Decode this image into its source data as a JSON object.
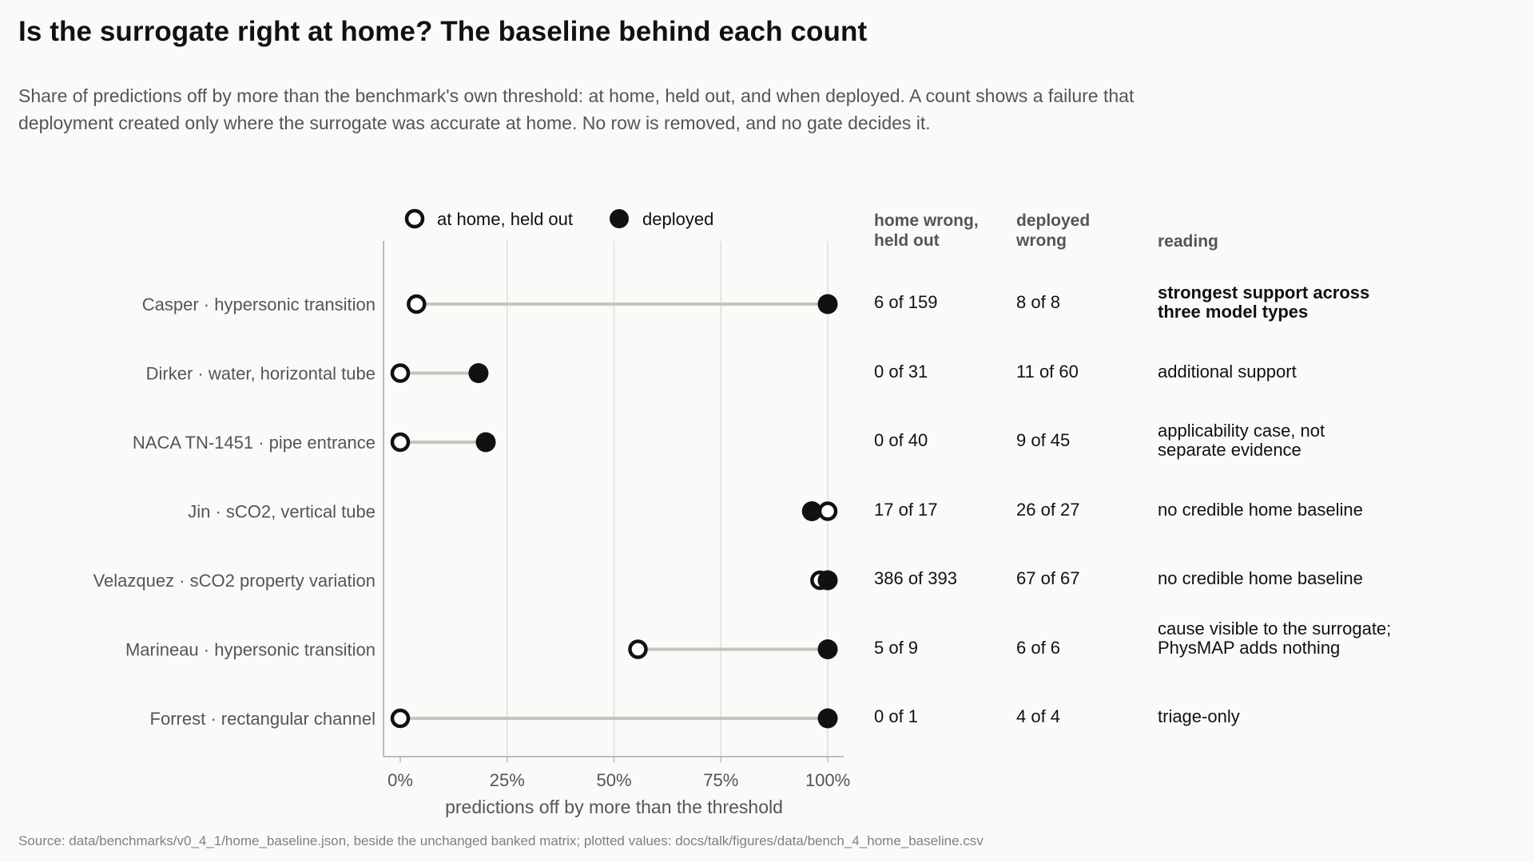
{
  "title": "Is the surrogate right at home? The baseline behind each count",
  "subtitle": "Share of predictions off by more than the benchmark's own threshold: at home, held out, and when deployed. A count shows a failure that deployment created only where the surrogate was accurate at home. No row is removed, and no gate decides it.",
  "source": "Source: data/benchmarks/v0_4_1/home_baseline.json, beside the unchanged banked matrix; plotted values: docs/talk/figures/data/bench_4_home_baseline.csv",
  "colors": {
    "home_marker_fill": "#ffffff",
    "deployed_marker": "#111111",
    "connector": "#c4c6b9",
    "grid": "#dddddd",
    "axis": "#bbbbbb"
  },
  "table": {
    "headers": {
      "home": "home wrong, held out",
      "deployed": "deployed wrong",
      "reading": "reading"
    }
  },
  "chart_data": {
    "type": "dumbbell",
    "xlabel": "predictions off by more than the threshold",
    "xlim": [
      0,
      100
    ],
    "xticks": [
      0,
      25,
      50,
      75,
      100
    ],
    "xtick_labels": [
      "0%",
      "25%",
      "50%",
      "75%",
      "100%"
    ],
    "grid": "vertical",
    "legend": {
      "position": "top",
      "items": [
        {
          "label": "at home, held out",
          "marker": "open-circle"
        },
        {
          "label": "deployed",
          "marker": "filled-circle"
        }
      ]
    },
    "rows": [
      {
        "label": "Casper · hypersonic transition",
        "home": 3.8,
        "deployed": 100,
        "home_count": "6 of 159",
        "deployed_count": "8 of 8",
        "reading": "strongest support across three model types",
        "reading_bold": true
      },
      {
        "label": "Dirker · water, horizontal tube",
        "home": 0,
        "deployed": 18.3,
        "home_count": "0 of 31",
        "deployed_count": "11 of 60",
        "reading": "additional support",
        "reading_bold": false
      },
      {
        "label": "NACA TN-1451 · pipe entrance",
        "home": 0,
        "deployed": 20,
        "home_count": "0 of 40",
        "deployed_count": "9 of 45",
        "reading": "applicability case, not separate evidence",
        "reading_bold": false
      },
      {
        "label": "Jin · sCO2, vertical tube",
        "home": 100,
        "deployed": 96.3,
        "home_count": "17 of 17",
        "deployed_count": "26 of 27",
        "reading": "no credible home baseline",
        "reading_bold": false
      },
      {
        "label": "Velazquez · sCO2 property variation",
        "home": 98.2,
        "deployed": 100,
        "home_count": "386 of 393",
        "deployed_count": "67 of 67",
        "reading": "no credible home baseline",
        "reading_bold": false
      },
      {
        "label": "Marineau · hypersonic transition",
        "home": 55.6,
        "deployed": 100,
        "home_count": "5 of 9",
        "deployed_count": "6 of 6",
        "reading": "cause visible to the surrogate; PhysMAP adds nothing",
        "reading_bold": false
      },
      {
        "label": "Forrest · rectangular channel",
        "home": 0,
        "deployed": 100,
        "home_count": "0 of 1",
        "deployed_count": "4 of 4",
        "reading": "triage-only",
        "reading_bold": false
      }
    ]
  }
}
